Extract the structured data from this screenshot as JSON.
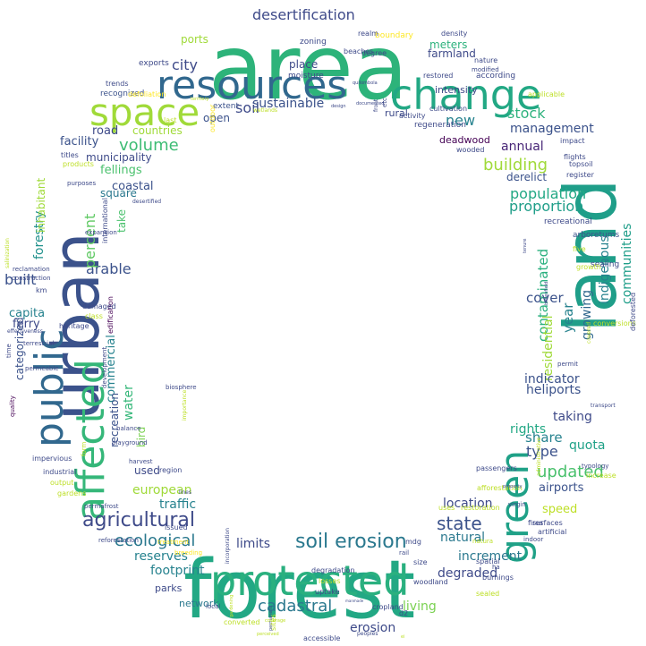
{
  "words": [
    {
      "text": "area",
      "color": "#2db37a"
    },
    {
      "text": "forest",
      "color": "#22a884"
    },
    {
      "text": "land",
      "color": "#1f9e89"
    },
    {
      "text": "urban",
      "color": "#3b528b"
    },
    {
      "text": "resources",
      "color": "#31688e"
    },
    {
      "text": "change",
      "color": "#22a884"
    },
    {
      "text": "public",
      "color": "#31688e"
    },
    {
      "text": "affected",
      "color": "#35b779"
    },
    {
      "text": "space",
      "color": "#a0da39"
    },
    {
      "text": "protected",
      "color": "#2ab07f"
    },
    {
      "text": "green",
      "color": "#1fa187"
    },
    {
      "text": "soil erosion",
      "color": "#2a788e"
    },
    {
      "text": "agricultural",
      "color": "#3e4a89"
    },
    {
      "text": "population",
      "color": "#22a884"
    },
    {
      "text": "volume",
      "color": "#3dbc74"
    },
    {
      "text": "cadastral",
      "color": "#2a788e"
    },
    {
      "text": "building",
      "color": "#a0da39"
    },
    {
      "text": "ecological",
      "color": "#2a788e"
    },
    {
      "text": "updated",
      "color": "#4ac16d"
    },
    {
      "text": "state",
      "color": "#3b528b"
    },
    {
      "text": "desertification",
      "color": "#3e4a89"
    },
    {
      "text": "stock",
      "color": "#2db27d"
    },
    {
      "text": "city",
      "color": "#3e4a89"
    },
    {
      "text": "soil",
      "color": "#3e4a89"
    },
    {
      "text": "new",
      "color": "#26828e"
    },
    {
      "text": "sustainable",
      "color": "#3b528b"
    },
    {
      "text": "management",
      "color": "#3b528b"
    },
    {
      "text": "annual",
      "color": "#482677"
    },
    {
      "text": "arable",
      "color": "#3b528b"
    },
    {
      "text": "built",
      "color": "#3b528b"
    },
    {
      "text": "forestry",
      "color": "#21918c"
    },
    {
      "text": "percent",
      "color": "#5ec962"
    },
    {
      "text": "proportion",
      "color": "#1f9e89"
    },
    {
      "text": "contaminated",
      "color": "#2ab07f"
    },
    {
      "text": "year",
      "color": "#26828e"
    },
    {
      "text": "cover",
      "color": "#3b528b"
    },
    {
      "text": "indigenous",
      "color": "#26828e"
    },
    {
      "text": "communities",
      "color": "#1f9e89"
    },
    {
      "text": "residential",
      "color": "#a0da39"
    },
    {
      "text": "type",
      "color": "#3b528b"
    },
    {
      "text": "share",
      "color": "#26828e"
    },
    {
      "text": "taking",
      "color": "#3e4a89"
    },
    {
      "text": "quota",
      "color": "#1fa187"
    },
    {
      "text": "rights",
      "color": "#22a884"
    },
    {
      "text": "heliports",
      "color": "#3b528b"
    },
    {
      "text": "indicator",
      "color": "#3b528b"
    },
    {
      "text": "growing",
      "color": "#31688e"
    },
    {
      "text": "reserves",
      "color": "#26828e"
    },
    {
      "text": "footprint",
      "color": "#26828e"
    },
    {
      "text": "limits",
      "color": "#3e4a89"
    },
    {
      "text": "natural",
      "color": "#2a788e"
    },
    {
      "text": "increment",
      "color": "#2a788e"
    },
    {
      "text": "degraded",
      "color": "#3e4a89"
    },
    {
      "text": "living",
      "color": "#7ad151"
    },
    {
      "text": "erosion",
      "color": "#3e4a89"
    },
    {
      "text": "location",
      "color": "#3e4a89"
    },
    {
      "text": "speed",
      "color": "#bddf26"
    },
    {
      "text": "airports",
      "color": "#3b528b"
    },
    {
      "text": "european",
      "color": "#a0da39"
    },
    {
      "text": "traffic",
      "color": "#26828e"
    },
    {
      "text": "water",
      "color": "#35b779"
    },
    {
      "text": "commercial",
      "color": "#26828e"
    },
    {
      "text": "recreation",
      "color": "#3b528b"
    },
    {
      "text": "bird",
      "color": "#7ad151"
    },
    {
      "text": "categorized",
      "color": "#3b528b"
    },
    {
      "text": "ferry",
      "color": "#3e4a89"
    },
    {
      "text": "capita",
      "color": "#26828e"
    },
    {
      "text": "inhabitant",
      "color": "#a0da39"
    },
    {
      "text": "facility",
      "color": "#3b528b"
    },
    {
      "text": "road",
      "color": "#3e4a89"
    },
    {
      "text": "municipality",
      "color": "#3e4a89"
    },
    {
      "text": "fellings",
      "color": "#4ac16d"
    },
    {
      "text": "coastal",
      "color": "#3b528b"
    },
    {
      "text": "square",
      "color": "#2a788e"
    },
    {
      "text": "take",
      "color": "#4ac16d"
    },
    {
      "text": "countries",
      "color": "#a0da39"
    },
    {
      "text": "open",
      "color": "#3b528b"
    },
    {
      "text": "ports",
      "color": "#a0da39"
    },
    {
      "text": "place",
      "color": "#3e4a89"
    },
    {
      "text": "meters",
      "color": "#2db27d"
    },
    {
      "text": "farmland",
      "color": "#3e4a89"
    },
    {
      "text": "intensity",
      "color": "#3e4a89"
    },
    {
      "text": "rural",
      "color": "#3e4a89"
    },
    {
      "text": "deadwood",
      "color": "#440154"
    },
    {
      "text": "derelict",
      "color": "#3b528b"
    },
    {
      "text": "used",
      "color": "#3e4a89"
    },
    {
      "text": "parks",
      "color": "#3e4a89"
    },
    {
      "text": "network",
      "color": "#2a788e"
    },
    {
      "text": "recognized",
      "color": "#3b528b"
    },
    {
      "text": "extent",
      "color": "#3b528b"
    },
    {
      "text": "moisture",
      "color": "#3e4a89"
    },
    {
      "text": "zoning",
      "color": "#3e4a89"
    },
    {
      "text": "exports",
      "color": "#3e4a89"
    },
    {
      "text": "boundary",
      "color": "#fde725"
    },
    {
      "text": "density",
      "color": "#3e4a89"
    },
    {
      "text": "according",
      "color": "#3e4a89"
    },
    {
      "text": "cultivation",
      "color": "#3e4a89"
    },
    {
      "text": "regeneration",
      "color": "#3e4a89"
    },
    {
      "text": "wooded",
      "color": "#3e4a89"
    },
    {
      "text": "impact",
      "color": "#3e4a89"
    },
    {
      "text": "flights",
      "color": "#3e4a89"
    },
    {
      "text": "topsoil",
      "color": "#3e4a89"
    },
    {
      "text": "register",
      "color": "#3e4a89"
    },
    {
      "text": "arboretums",
      "color": "#3b528b"
    },
    {
      "text": "sealing",
      "color": "#3e4a89"
    },
    {
      "text": "growth",
      "color": "#bddf26"
    },
    {
      "text": "conversions",
      "color": "#bddf26"
    },
    {
      "text": "deforested",
      "color": "#3e4a89"
    },
    {
      "text": "recreational",
      "color": "#3e4a89"
    },
    {
      "text": "five",
      "color": "#bddf26"
    },
    {
      "text": "applicable",
      "color": "#bddf26"
    },
    {
      "text": "km",
      "color": "#3e4a89"
    },
    {
      "text": "construction",
      "color": "#3e4a89"
    },
    {
      "text": "reclamation",
      "color": "#3e4a89"
    },
    {
      "text": "heritage",
      "color": "#3e4a89"
    },
    {
      "text": "edification",
      "color": "#440154"
    },
    {
      "text": "development",
      "color": "#3e4a89"
    },
    {
      "text": "damaged",
      "color": "#3e4a89"
    },
    {
      "text": "class",
      "color": "#bddf26"
    },
    {
      "text": "time",
      "color": "#3e4a89"
    },
    {
      "text": "terrestrial",
      "color": "#3e4a89"
    },
    {
      "text": "permeable",
      "color": "#3e4a89"
    },
    {
      "text": "quality",
      "color": "#440154"
    },
    {
      "text": "impervious",
      "color": "#3e4a89"
    },
    {
      "text": "playground",
      "color": "#3e4a89"
    },
    {
      "text": "balance",
      "color": "#3e4a89"
    },
    {
      "text": "harvest",
      "color": "#3e4a89"
    },
    {
      "text": "region",
      "color": "#3e4a89"
    },
    {
      "text": "industrial",
      "color": "#3e4a89"
    },
    {
      "text": "output",
      "color": "#bddf26"
    },
    {
      "text": "gardens",
      "color": "#bddf26"
    },
    {
      "text": "form",
      "color": "#bddf26"
    },
    {
      "text": "permafrost",
      "color": "#3e4a89"
    },
    {
      "text": "lines",
      "color": "#3e4a89"
    },
    {
      "text": "issued",
      "color": "#3e4a89"
    },
    {
      "text": "reforestation",
      "color": "#3e4a89"
    },
    {
      "text": "treatment",
      "color": "#fde725"
    },
    {
      "text": "breeding",
      "color": "#fde725"
    },
    {
      "text": "sites",
      "color": "#bddf26"
    },
    {
      "text": "degradation",
      "color": "#3e4a89"
    },
    {
      "text": "losses",
      "color": "#bddf26"
    },
    {
      "text": "uptake",
      "color": "#3e4a89"
    },
    {
      "text": "cropland",
      "color": "#3e4a89"
    },
    {
      "text": "woodland",
      "color": "#3e4a89"
    },
    {
      "text": "d2",
      "color": "#3e4a89"
    },
    {
      "text": "accessible",
      "color": "#3e4a89"
    },
    {
      "text": "converted",
      "color": "#bddf26"
    },
    {
      "text": "size",
      "color": "#3e4a89"
    },
    {
      "text": "rail",
      "color": "#3e4a89"
    },
    {
      "text": "mdg",
      "color": "#3e4a89"
    },
    {
      "text": "natura",
      "color": "#bddf26"
    },
    {
      "text": "spatial",
      "color": "#3e4a89"
    },
    {
      "text": "burnings",
      "color": "#3e4a89"
    },
    {
      "text": "sealed",
      "color": "#bddf26"
    },
    {
      "text": "ha",
      "color": "#3e4a89"
    },
    {
      "text": "surfaces",
      "color": "#3e4a89"
    },
    {
      "text": "indoor",
      "color": "#3e4a89"
    },
    {
      "text": "artificial",
      "color": "#3e4a89"
    },
    {
      "text": "uses",
      "color": "#bddf26"
    },
    {
      "text": "restoration",
      "color": "#bddf26"
    },
    {
      "text": "afforestation",
      "color": "#bddf26"
    },
    {
      "text": "passengers",
      "color": "#3e4a89"
    },
    {
      "text": "virgin",
      "color": "#3e4a89"
    },
    {
      "text": "fires",
      "color": "#3e4a89"
    },
    {
      "text": "typology",
      "color": "#3e4a89"
    },
    {
      "text": "increase",
      "color": "#bddf26"
    },
    {
      "text": "permit",
      "color": "#3e4a89"
    },
    {
      "text": "transport",
      "color": "#3e4a89"
    },
    {
      "text": "last",
      "color": "#bddf26"
    },
    {
      "text": "titles",
      "color": "#3e4a89"
    },
    {
      "text": "products",
      "color": "#bddf26"
    },
    {
      "text": "purposes",
      "color": "#3e4a89"
    },
    {
      "text": "trends",
      "color": "#3e4a89"
    },
    {
      "text": "defoliation",
      "color": "#fde725"
    },
    {
      "text": "beaches",
      "color": "#3e4a89"
    },
    {
      "text": "degree",
      "color": "#3e4a89"
    },
    {
      "text": "etc",
      "color": "#3e4a89"
    },
    {
      "text": "front",
      "color": "#3e4a89"
    },
    {
      "text": "activity",
      "color": "#3e4a89"
    },
    {
      "text": "restored",
      "color": "#3e4a89"
    },
    {
      "text": "modified",
      "color": "#3e4a89"
    },
    {
      "text": "nature",
      "color": "#3e4a89"
    },
    {
      "text": "realm",
      "color": "#3e4a89"
    },
    {
      "text": "effectiveness",
      "color": "#3e4a89"
    },
    {
      "text": "salinization",
      "color": "#bddf26"
    },
    {
      "text": "expansion",
      "color": "#3e4a89"
    },
    {
      "text": "biosphere",
      "color": "#3e4a89"
    },
    {
      "text": "desertified",
      "color": "#3e4a89"
    },
    {
      "text": "international",
      "color": "#3e4a89"
    },
    {
      "text": "outdoor",
      "color": "#fde725"
    },
    {
      "text": "territory",
      "color": "#bddf26"
    },
    {
      "text": "quilombola",
      "color": "#3e4a89"
    },
    {
      "text": "documented",
      "color": "#3e4a89"
    },
    {
      "text": "design",
      "color": "#3e4a89"
    },
    {
      "text": "tenure",
      "color": "#3e4a89"
    },
    {
      "text": "brownfield",
      "color": "#3e4a89"
    },
    {
      "text": "property",
      "color": "#3e4a89"
    },
    {
      "text": "administrative",
      "color": "#bddf26"
    },
    {
      "text": "incorporation",
      "color": "#3e4a89"
    },
    {
      "text": "gardening",
      "color": "#bddf26"
    },
    {
      "text": "permanent",
      "color": "#3e4a89"
    },
    {
      "text": "coverage",
      "color": "#bddf26"
    },
    {
      "text": "perceived",
      "color": "#bddf26"
    },
    {
      "text": "peoples",
      "color": "#3e4a89"
    },
    {
      "text": "local",
      "color": "#3e4a89"
    },
    {
      "text": "importance",
      "color": "#bddf26"
    },
    {
      "text": "ei",
      "color": "#bddf26"
    },
    {
      "text": "covered",
      "color": "#bddf26"
    },
    {
      "text": "manmade",
      "color": "#3e4a89"
    },
    {
      "text": "wetlands",
      "color": "#bddf26"
    },
    {
      "text": "measures",
      "color": "#3e4a89"
    },
    {
      "text": "d3",
      "color": "#3e4a89"
    }
  ]
}
